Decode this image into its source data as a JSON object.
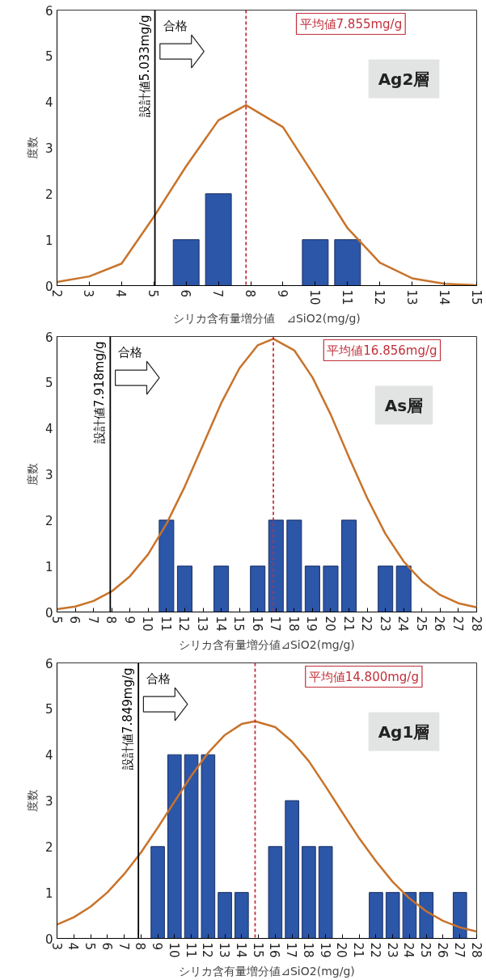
{
  "chart_data": [
    {
      "type": "bar",
      "xlabel": "シリカ含有量増分値　⊿SiO2(mg/g)",
      "ylabel": "度数",
      "xlim": [
        2,
        15
      ],
      "ylim": [
        0,
        6
      ],
      "xticks": [
        2,
        3,
        4,
        5,
        6,
        7,
        8,
        9,
        10,
        11,
        12,
        13,
        14,
        15
      ],
      "yticks": [
        0,
        1,
        2,
        3,
        4,
        5,
        6
      ],
      "grid": false,
      "series": [
        {
          "type": "bar",
          "color": "#2c56a8",
          "x": [
            6,
            7,
            10,
            11
          ],
          "values": [
            1,
            2,
            1,
            1
          ]
        },
        {
          "type": "line",
          "color": "#c8732a",
          "x": [
            2,
            3,
            4,
            5,
            6,
            7,
            7.855,
            9,
            10,
            11,
            12,
            13,
            14,
            15
          ],
          "values": [
            0.08,
            0.2,
            0.48,
            1.5,
            2.6,
            3.6,
            3.93,
            3.45,
            2.36,
            1.25,
            0.5,
            0.16,
            0.04,
            0.01
          ]
        }
      ],
      "ref_lines": [
        {
          "axis": "x",
          "value": 5.033,
          "label": "設計値5.033mg/g",
          "color": "#000000",
          "line_style": "solid"
        },
        {
          "axis": "x",
          "value": 7.855,
          "label": "平均値7.855mg/g",
          "color": "#c0303a",
          "line_style": "dashed"
        }
      ],
      "annotations": [
        "合格",
        "Ag2層"
      ]
    },
    {
      "type": "bar",
      "xlabel": "シリカ含有量増分値⊿SiO2(mg/g)",
      "ylabel": "度数",
      "xlim": [
        5,
        28
      ],
      "ylim": [
        0,
        6
      ],
      "xticks": [
        5,
        6,
        7,
        8,
        9,
        10,
        11,
        12,
        13,
        14,
        15,
        16,
        17,
        18,
        19,
        20,
        21,
        22,
        23,
        24,
        25,
        26,
        27,
        28
      ],
      "yticks": [
        0,
        1,
        2,
        3,
        4,
        5,
        6
      ],
      "grid": false,
      "series": [
        {
          "type": "bar",
          "color": "#2c56a8",
          "x": [
            11,
            12,
            14,
            16,
            17,
            18,
            19,
            20,
            21,
            23,
            24
          ],
          "values": [
            2,
            1,
            1,
            1,
            2,
            2,
            1,
            1,
            2,
            1,
            1
          ]
        },
        {
          "type": "line",
          "color": "#c8732a",
          "x": [
            5,
            6,
            7,
            8,
            9,
            10,
            11,
            12,
            13,
            14,
            15,
            16,
            16.856,
            18,
            19,
            20,
            21,
            22,
            23,
            24,
            25,
            26,
            27,
            28
          ],
          "values": [
            0.06,
            0.12,
            0.24,
            0.45,
            0.78,
            1.26,
            1.92,
            2.73,
            3.64,
            4.55,
            5.31,
            5.81,
            5.95,
            5.7,
            5.11,
            4.3,
            3.37,
            2.48,
            1.7,
            1.1,
            0.67,
            0.37,
            0.19,
            0.1
          ]
        }
      ],
      "ref_lines": [
        {
          "axis": "x",
          "value": 7.918,
          "label": "設計値7.918mg/g",
          "color": "#000000",
          "line_style": "solid"
        },
        {
          "axis": "x",
          "value": 16.856,
          "label": "平均値16.856mg/g",
          "color": "#c0303a",
          "line_style": "dashed"
        }
      ],
      "annotations": [
        "合格",
        "As層"
      ]
    },
    {
      "type": "bar",
      "xlabel": "シリカ含有量増分値⊿SiO2(mg/g)",
      "ylabel": "度数",
      "xlim": [
        3,
        28
      ],
      "ylim": [
        0,
        6
      ],
      "xticks": [
        3,
        4,
        5,
        6,
        7,
        8,
        9,
        10,
        11,
        12,
        13,
        14,
        15,
        16,
        17,
        18,
        19,
        20,
        21,
        22,
        23,
        24,
        25,
        26,
        27,
        28
      ],
      "yticks": [
        0,
        1,
        2,
        3,
        4,
        5,
        6
      ],
      "grid": false,
      "series": [
        {
          "type": "bar",
          "color": "#2c56a8",
          "x": [
            9,
            10,
            11,
            12,
            13,
            14,
            16,
            17,
            18,
            19,
            22,
            23,
            24,
            25,
            27
          ],
          "values": [
            2,
            4,
            4,
            4,
            1,
            1,
            2,
            3,
            2,
            2,
            1,
            1,
            1,
            1,
            1
          ]
        },
        {
          "type": "line",
          "color": "#c8732a",
          "x": [
            3,
            4,
            5,
            6,
            7,
            8,
            9,
            10,
            11,
            12,
            13,
            14,
            14.8,
            16,
            17,
            18,
            19,
            20,
            21,
            22,
            23,
            24,
            25,
            26,
            27,
            28
          ],
          "values": [
            0.3,
            0.46,
            0.69,
            1.0,
            1.4,
            1.87,
            2.41,
            2.98,
            3.54,
            4.04,
            4.43,
            4.67,
            4.73,
            4.6,
            4.29,
            3.86,
            3.31,
            2.74,
            2.18,
            1.68,
            1.23,
            0.87,
            0.59,
            0.38,
            0.24,
            0.15
          ]
        }
      ],
      "ref_lines": [
        {
          "axis": "x",
          "value": 7.849,
          "label": "設計値7.849mg/g",
          "color": "#000000",
          "line_style": "solid"
        },
        {
          "axis": "x",
          "value": 14.8,
          "label": "平均値14.800mg/g",
          "color": "#c0303a",
          "line_style": "dashed"
        }
      ],
      "annotations": [
        "合格",
        "Ag1層"
      ]
    }
  ]
}
